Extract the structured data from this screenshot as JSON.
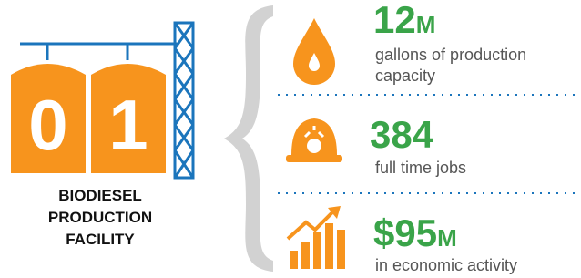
{
  "facility": {
    "digits": [
      "0",
      "1"
    ],
    "label_lines": [
      "BIODIESEL",
      "PRODUCTION",
      "FACILITY"
    ]
  },
  "stats": [
    {
      "value": "12",
      "unit": "M",
      "description_lines": [
        "gallons of production",
        "capacity"
      ]
    },
    {
      "value": "384",
      "description_lines": [
        "full time jobs"
      ]
    },
    {
      "value": "$95",
      "unit": "M",
      "description_lines": [
        "in economic activity"
      ]
    }
  ]
}
